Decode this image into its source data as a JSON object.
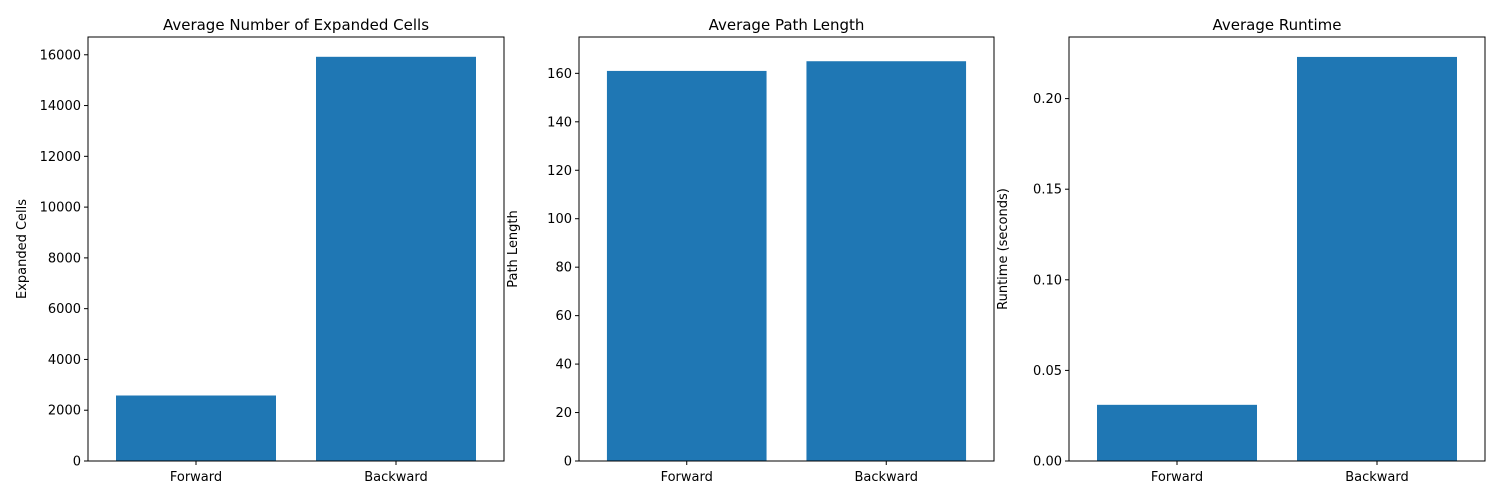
{
  "chart_data": [
    {
      "type": "bar",
      "title": "Average Number of Expanded Cells",
      "xlabel": "",
      "ylabel": "Expanded Cells",
      "categories": [
        "Forward",
        "Backward"
      ],
      "values": [
        2580,
        15920
      ],
      "ylim": [
        0,
        16700
      ],
      "yticks": [
        0,
        2000,
        4000,
        6000,
        8000,
        10000,
        12000,
        14000,
        16000
      ],
      "ytick_labels": [
        "0",
        "2000",
        "4000",
        "6000",
        "8000",
        "10000",
        "12000",
        "14000",
        "16000"
      ],
      "grid": false,
      "legend": "none",
      "bar_color": "#1f77b4"
    },
    {
      "type": "bar",
      "title": "Average Path Length",
      "xlabel": "",
      "ylabel": "Path Length",
      "categories": [
        "Forward",
        "Backward"
      ],
      "values": [
        161,
        165
      ],
      "ylim": [
        0,
        175
      ],
      "yticks": [
        0,
        20,
        40,
        60,
        80,
        100,
        120,
        140,
        160
      ],
      "ytick_labels": [
        "0",
        "20",
        "40",
        "60",
        "80",
        "100",
        "120",
        "140",
        "160"
      ],
      "grid": false,
      "legend": "none",
      "bar_color": "#1f77b4"
    },
    {
      "type": "bar",
      "title": "Average Runtime",
      "xlabel": "",
      "ylabel": "Runtime (seconds)",
      "categories": [
        "Forward",
        "Backward"
      ],
      "values": [
        0.031,
        0.223
      ],
      "ylim": [
        0,
        0.234
      ],
      "yticks": [
        0,
        0.05,
        0.1,
        0.15,
        0.2
      ],
      "ytick_labels": [
        "0.00",
        "0.05",
        "0.10",
        "0.15",
        "0.20"
      ],
      "grid": false,
      "legend": "none",
      "bar_color": "#1f77b4"
    }
  ]
}
